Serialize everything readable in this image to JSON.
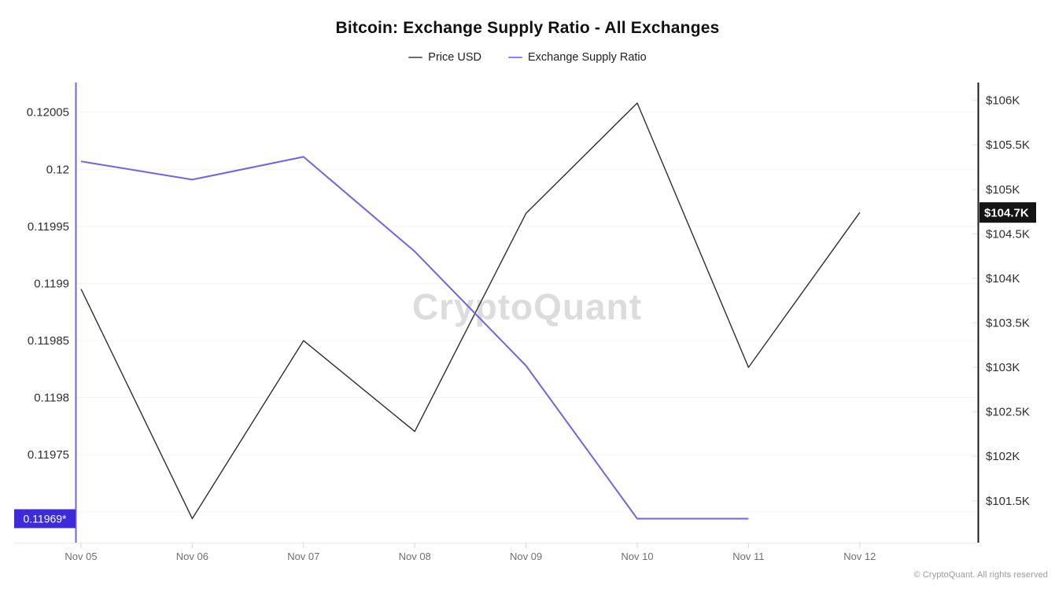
{
  "page": {
    "title": "Bitcoin: Exchange Supply Ratio - All Exchanges",
    "watermark": "CryptoQuant",
    "footer": "© CryptoQuant. All rights reserved"
  },
  "legend": {
    "items": [
      {
        "label": "Price USD",
        "color": "#6f6f6f"
      },
      {
        "label": "Exchange Supply Ratio",
        "color": "#8e82ee"
      }
    ]
  },
  "chart_data": {
    "type": "line",
    "title": "Bitcoin: Exchange Supply Ratio - All Exchanges",
    "legend_position": "top-center",
    "grid": "horizontal-faint",
    "categories": [
      "Nov 05",
      "Nov 06",
      "Nov 07",
      "Nov 08",
      "Nov 09",
      "Nov 10",
      "Nov 11",
      "Nov 12"
    ],
    "series": [
      {
        "name": "Price USD",
        "axis": "right",
        "color": "#2e2e2e",
        "unit": "USD thousands",
        "values": [
          103.88,
          101.3,
          103.3,
          102.28,
          104.73,
          105.97,
          103.0,
          104.74
        ]
      },
      {
        "name": "Exchange Supply Ratio",
        "axis": "left",
        "color": "#7164e4",
        "unit": "ratio",
        "values": [
          0.120007,
          0.119991,
          0.120011,
          0.119928,
          0.119828,
          0.119694,
          0.119694,
          null
        ]
      }
    ],
    "left_axis": {
      "min": 0.119673,
      "max": 0.120076,
      "ticks": [
        {
          "label": "0.12005",
          "value": 0.12005
        },
        {
          "label": "0.12",
          "value": 0.12
        },
        {
          "label": "0.11995",
          "value": 0.11995
        },
        {
          "label": "0.1199",
          "value": 0.1199
        },
        {
          "label": "0.11985",
          "value": 0.11985
        },
        {
          "label": "0.1198",
          "value": 0.1198
        },
        {
          "label": "0.11975",
          "value": 0.11975
        },
        {
          "label": "",
          "value": 0.1197
        }
      ],
      "current_badge": {
        "label": "0.11969*",
        "value": 0.119694,
        "bg": "#3d2bd9",
        "fg": "#ffffff"
      }
    },
    "right_axis": {
      "min": 101.03,
      "max": 106.2,
      "ticks": [
        {
          "label": "$106K",
          "value": 106
        },
        {
          "label": "$105.5K",
          "value": 105.5
        },
        {
          "label": "$105K",
          "value": 105
        },
        {
          "label": "$104.5K",
          "value": 104.5
        },
        {
          "label": "$104K",
          "value": 104
        },
        {
          "label": "$103.5K",
          "value": 103.5
        },
        {
          "label": "$103K",
          "value": 103
        },
        {
          "label": "$102.5K",
          "value": 102.5
        },
        {
          "label": "$102K",
          "value": 102
        },
        {
          "label": "$101.5K",
          "value": 101.5
        }
      ],
      "current_badge": {
        "label": "$104.7K",
        "value": 104.74,
        "bg": "#141414",
        "fg": "#ffffff"
      }
    }
  }
}
